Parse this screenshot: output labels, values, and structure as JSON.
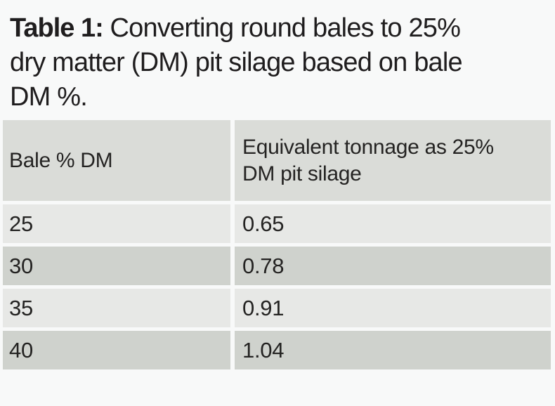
{
  "title": {
    "prefix": "Table 1:",
    "rest": " Converting round bales to 25%\ndry matter (DM) pit silage based on bale\nDM %."
  },
  "table": {
    "columns": [
      "Bale % DM",
      "Equivalent tonnage as 25%\nDM pit silage"
    ],
    "rows": [
      {
        "bale_dm": "25",
        "equivalent_tonnage": "0.65"
      },
      {
        "bale_dm": "30",
        "equivalent_tonnage": "0.78"
      },
      {
        "bale_dm": "35",
        "equivalent_tonnage": "0.91"
      },
      {
        "bale_dm": "40",
        "equivalent_tonnage": "1.04"
      }
    ]
  },
  "colors": {
    "page_background": "#f8f9f9",
    "header_background": "#dadcd8",
    "row_light": "#e7e8e6",
    "row_dark": "#cfd2cd",
    "text": "#232122"
  }
}
